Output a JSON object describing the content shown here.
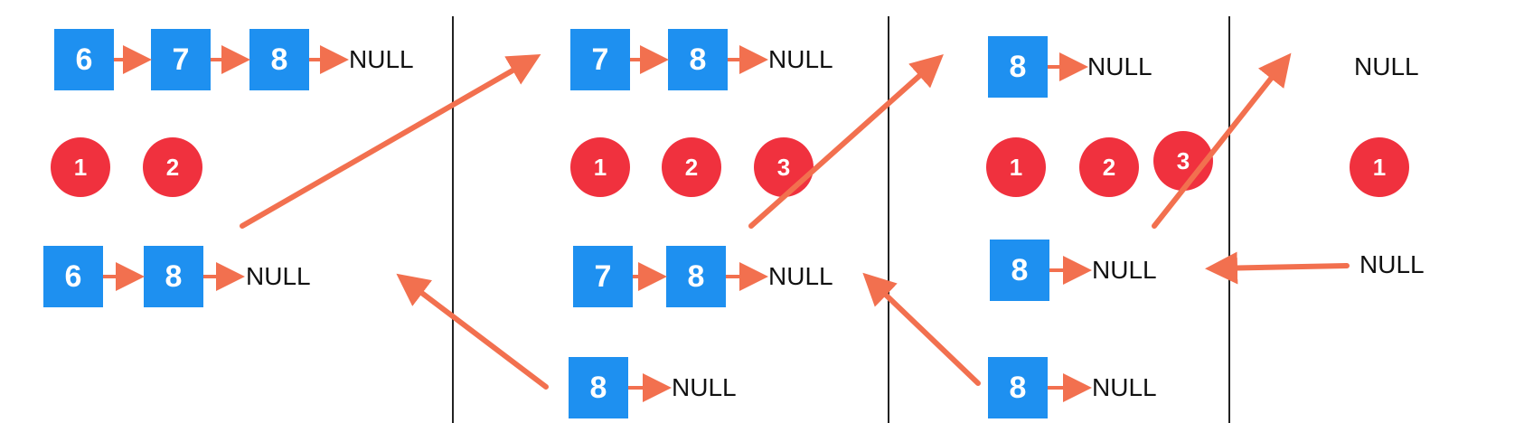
{
  "colors": {
    "node": "#1e90f0",
    "badge": "#f0313e",
    "arrow": "#f2704f",
    "divider": "#222222"
  },
  "null_label": "NULL",
  "panels": [
    {
      "top_list": [
        "6",
        "7",
        "8"
      ],
      "badges": [
        "1",
        "2"
      ],
      "bottom_list": [
        "6",
        "8"
      ]
    },
    {
      "top_list": [
        "7",
        "8"
      ],
      "badges": [
        "1",
        "2",
        "3"
      ],
      "middle_list": [
        "7",
        "8"
      ],
      "bottom_list": [
        "8"
      ]
    },
    {
      "top_list": [
        "8"
      ],
      "badges": [
        "1",
        "2",
        "3"
      ],
      "middle_list": [
        "8"
      ],
      "bottom_list": [
        "8"
      ]
    },
    {
      "top_list": [],
      "badges": [
        "1"
      ],
      "middle_list": []
    }
  ]
}
